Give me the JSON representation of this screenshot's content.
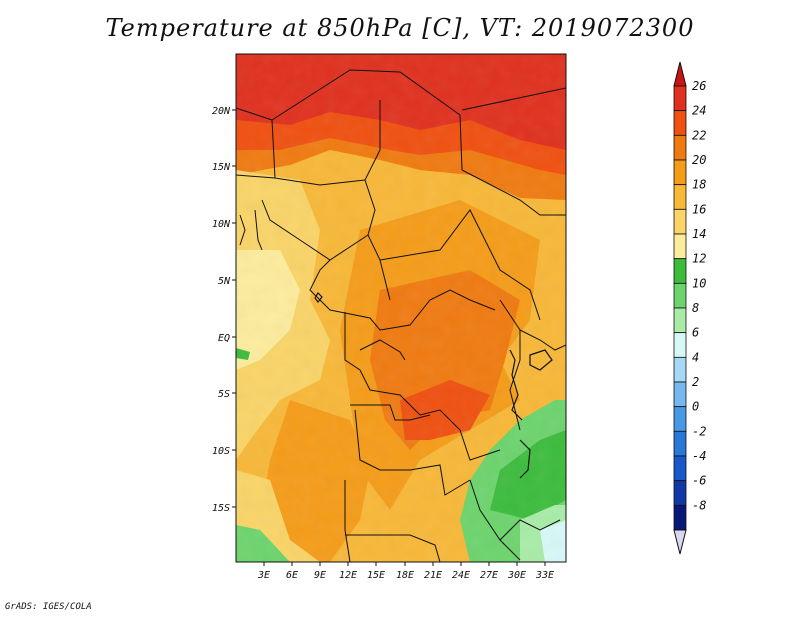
{
  "title": "Temperature at 850hPa [C], VT: 2019072300",
  "footer": "GrADS: IGES/COLA",
  "lat_labels": [
    "20N",
    "15N",
    "10N",
    "5N",
    "EQ",
    "5S",
    "10S",
    "15S"
  ],
  "lon_labels": [
    "3E",
    "6E",
    "9E",
    "12E",
    "15E",
    "18E",
    "21E",
    "24E",
    "27E",
    "30E",
    "33E"
  ],
  "colorbar": {
    "labels": [
      "26",
      "24",
      "22",
      "20",
      "18",
      "16",
      "14",
      "12",
      "10",
      "8",
      "6",
      "4",
      "2",
      "0",
      "-2",
      "-4",
      "-6",
      "-8"
    ],
    "colors": [
      "#e0301e",
      "#f05010",
      "#f07a10",
      "#f59c18",
      "#f8b838",
      "#fad468",
      "#fcec9c",
      "#3cbc3c",
      "#6cd46c",
      "#a8eca8",
      "#d8f8f8",
      "#a8d8f8",
      "#78b8f0",
      "#4898e8",
      "#2878d8",
      "#1858c8",
      "#1038a8",
      "#081878"
    ],
    "top_arrow_color": "#c81414",
    "bottom_arrow_color": "#d8d8f0"
  }
}
